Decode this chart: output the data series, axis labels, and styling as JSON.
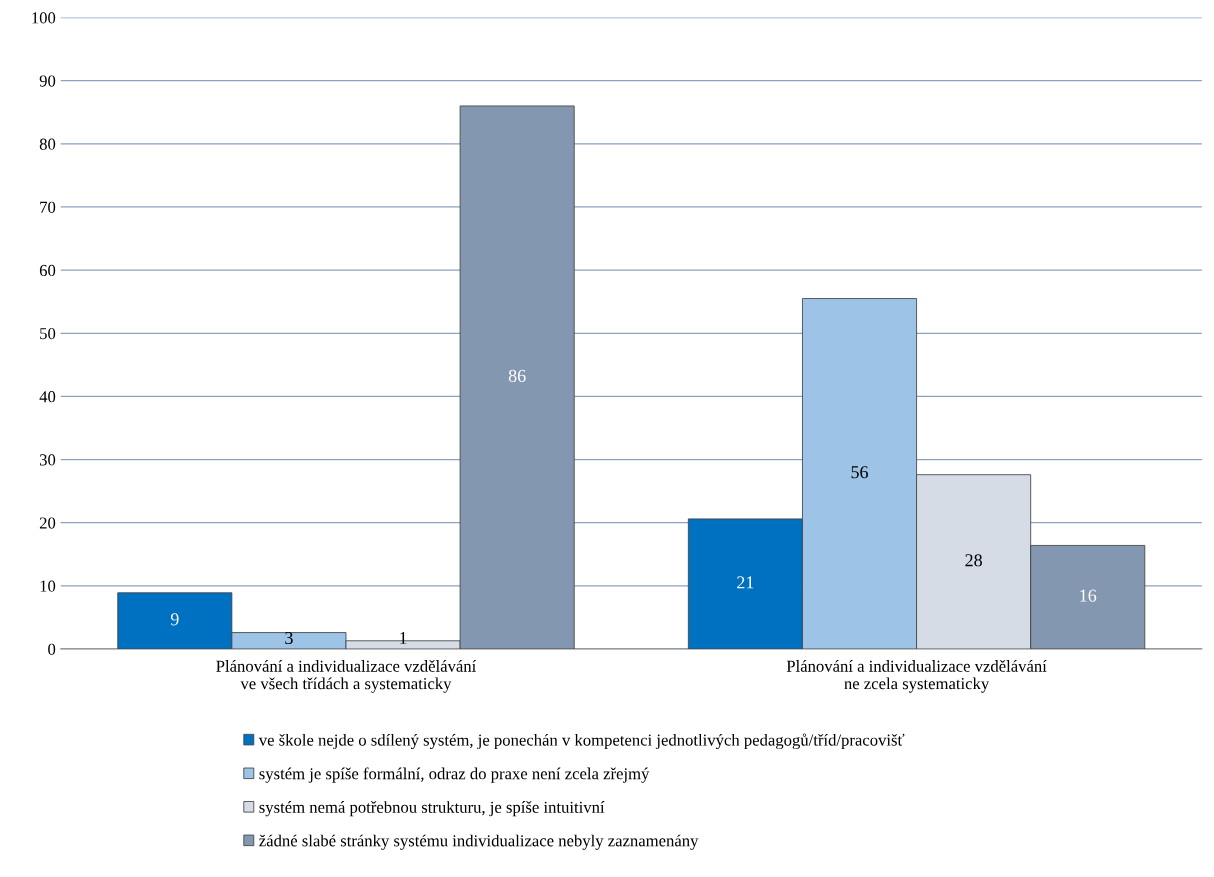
{
  "chart_data": {
    "type": "bar",
    "categories": [
      "Plánování a individualizace vzdělávání\nve všech třídách a systematicky",
      "Plánování a individualizace vzdělávání\nne zcela systematicky"
    ],
    "series": [
      {
        "name": "ve škole nejde o sdílený systém, je ponechán v kompetenci jednotlivých pedagogů/tříd/pracovišť",
        "color": "#0070c0",
        "values": [
          8.9,
          20.6
        ],
        "value_labels": [
          "9",
          "21"
        ]
      },
      {
        "name": "systém je spíše formální, odraz do praxe není zcela zřejmý",
        "color": "#9dc3e6",
        "values": [
          2.6,
          55.5
        ],
        "value_labels": [
          "3",
          "56"
        ]
      },
      {
        "name": "systém nemá potřebnou strukturu, je spíše intuitivní",
        "color": "#d6dce5",
        "values": [
          1.3,
          27.6
        ],
        "value_labels": [
          "1",
          "28"
        ]
      },
      {
        "name": "žádné slabé stránky systému individualizace nebyly zaznamenány",
        "color": "#8497b0",
        "values": [
          86,
          16.4
        ],
        "value_labels": [
          "86",
          "16"
        ]
      }
    ],
    "ylim": [
      0,
      100
    ],
    "yticks": [
      0,
      10,
      20,
      30,
      40,
      50,
      60,
      70,
      80,
      90,
      100
    ],
    "grid": "y",
    "legend": "bottom"
  }
}
